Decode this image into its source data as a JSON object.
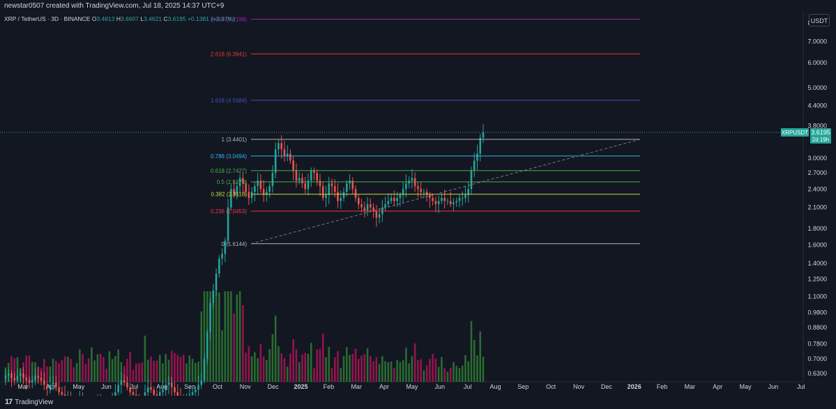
{
  "header": {
    "attribution": "newstar0507 created with TradingView.com, Jul 18, 2025 14:37 UTC+9",
    "symbol": "XRP / TetherUS · 3D · BINANCE",
    "ohlc": {
      "o_label": "O",
      "o": "3.4813",
      "h_label": "H",
      "h": "3.6607",
      "l_label": "L",
      "l": "3.4621",
      "c_label": "C",
      "c": "3.6195",
      "change": "+0.1381 (+3.97%)"
    }
  },
  "currency_button": "USDT",
  "footer": {
    "brand": "TradingView"
  },
  "price_tag": {
    "ticker": "XRPUSDT",
    "price": "3.6195",
    "countdown": "2d 19h"
  },
  "colors": {
    "background": "#131722",
    "up": "#26a69a",
    "down": "#ef5350",
    "vol_up": "#2e7d32",
    "vol_down": "#ad1457",
    "grid": "#1e222d",
    "text": "#b2b5be"
  },
  "chart_data": {
    "type": "candlestick",
    "y_scale": "log",
    "y_ticks": [
      "8.0000",
      "7.0000",
      "6.0000",
      "5.0000",
      "4.4000",
      "3.8000",
      "3.0000",
      "2.7000",
      "2.4000",
      "2.1000",
      "1.8000",
      "1.6000",
      "1.4000",
      "1.2500",
      "1.1000",
      "0.9800",
      "0.8800",
      "0.7800",
      "0.7000",
      "0.6300"
    ],
    "x_ticks": [
      "Mar",
      "Apr",
      "May",
      "Jun",
      "Jul",
      "Aug",
      "Sep",
      "Oct",
      "Nov",
      "Dec",
      "2025",
      "Feb",
      "Mar",
      "Apr",
      "May",
      "Jun",
      "Jul",
      "Aug",
      "Sep",
      "Oct",
      "Nov",
      "Dec",
      "2026",
      "Feb",
      "Mar",
      "Apr",
      "May",
      "Jun",
      "Jul"
    ],
    "fib_levels": [
      {
        "label": "0 (1.6144)",
        "value": 1.6144,
        "color": "#b2b5be"
      },
      {
        "label": "0.236 (2.0453)",
        "value": 2.0453,
        "color": "#f23645"
      },
      {
        "label": "0.382 (2.3118)",
        "value": 2.3118,
        "color": "#cddc39"
      },
      {
        "label": "0.5 (2.5273)",
        "value": 2.5273,
        "color": "#4caf50"
      },
      {
        "label": "0.618 (2.7427)",
        "value": 2.7427,
        "color": "#4caf50"
      },
      {
        "label": "0.786 (3.0494)",
        "value": 3.0494,
        "color": "#29b6f6"
      },
      {
        "label": "1 (3.4401)",
        "value": 3.4401,
        "color": "#b2b5be"
      },
      {
        "label": "1.618 (4.5684)",
        "value": 4.5684,
        "color": "#3f51b5"
      },
      {
        "label": "2.618 (6.3941)",
        "value": 6.3941,
        "color": "#e53935"
      },
      {
        "label": "3.618 (8.2198)",
        "value": 8.2198,
        "color": "#9c27b0"
      }
    ],
    "last_price": 3.6195,
    "candles_close": [
      0.62,
      0.63,
      0.61,
      0.6,
      0.62,
      0.63,
      0.61,
      0.6,
      0.59,
      0.6,
      0.62,
      0.61,
      0.6,
      0.58,
      0.57,
      0.58,
      0.59,
      0.57,
      0.55,
      0.54,
      0.52,
      0.53,
      0.51,
      0.5,
      0.5,
      0.52,
      0.5,
      0.49,
      0.48,
      0.5,
      0.51,
      0.52,
      0.5,
      0.49,
      0.48,
      0.5,
      0.52,
      0.55,
      0.58,
      0.6,
      0.59,
      0.57,
      0.55,
      0.54,
      0.53,
      0.52,
      0.51,
      0.55,
      0.57,
      0.56,
      0.54,
      0.53,
      0.55,
      0.56,
      0.58,
      0.59,
      0.57,
      0.55,
      0.53,
      0.52,
      0.51,
      0.52,
      0.54,
      0.55,
      0.56,
      0.58,
      0.6,
      0.7,
      0.85,
      1.05,
      1.15,
      1.3,
      1.45,
      1.5,
      1.65,
      2.1,
      2.4,
      2.3,
      2.45,
      2.6,
      2.5,
      2.35,
      2.25,
      2.35,
      2.45,
      2.55,
      2.4,
      2.3,
      2.35,
      2.45,
      2.7,
      3.2,
      3.35,
      3.2,
      3.05,
      3.1,
      2.95,
      2.75,
      2.55,
      2.6,
      2.5,
      2.4,
      2.55,
      2.75,
      2.7,
      2.55,
      2.45,
      2.25,
      2.3,
      2.5,
      2.45,
      2.35,
      2.2,
      2.25,
      2.35,
      2.5,
      2.55,
      2.4,
      2.25,
      2.15,
      2.1,
      2.05,
      2.15,
      2.1,
      2.05,
      1.95,
      2.0,
      2.1,
      2.15,
      2.2,
      2.25,
      2.2,
      2.25,
      2.3,
      2.4,
      2.5,
      2.55,
      2.6,
      2.45,
      2.4,
      2.35,
      2.35,
      2.3,
      2.25,
      2.2,
      2.15,
      2.2,
      2.25,
      2.2,
      2.2,
      2.15,
      2.18,
      2.2,
      2.25,
      2.25,
      2.3,
      2.4,
      2.75,
      2.95,
      3.1,
      3.48,
      3.6195
    ],
    "volume_scale_note": "relative",
    "trend_line": {
      "from": {
        "date": "Nov 2024",
        "price": 1.6144
      },
      "to": {
        "date": "Jan 2026",
        "price": 3.4401
      }
    }
  }
}
